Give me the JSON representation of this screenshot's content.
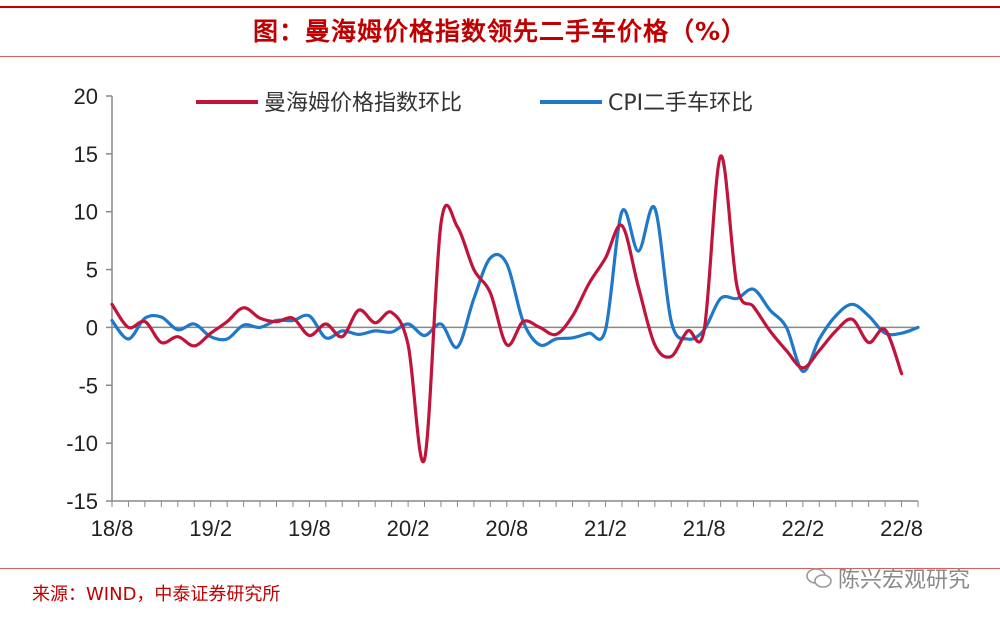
{
  "header": {
    "title": "图：曼海姆价格指数领先二手车价格（%）"
  },
  "footer": {
    "source": "来源：WIND，中泰证券研究所",
    "watermark": "陈兴宏观研究"
  },
  "colors": {
    "accent": "#c00000",
    "series_1": "#c0143c",
    "series_2": "#1f78c8",
    "axis": "#888888"
  },
  "chart_data": {
    "type": "line",
    "title": "图：曼海姆价格指数领先二手车价格（%）",
    "xlabel": "",
    "ylabel": "",
    "ylim": [
      -15,
      20
    ],
    "yticks": [
      20,
      15,
      10,
      5,
      0,
      -5,
      -10,
      -15
    ],
    "xlim": [
      "2018-08",
      "2022-09"
    ],
    "xticks": [
      "18/8",
      "19/2",
      "19/8",
      "20/2",
      "20/8",
      "21/2",
      "21/8",
      "22/2",
      "22/8"
    ],
    "legend": {
      "placement": "top-center"
    },
    "grid": false,
    "series": [
      {
        "name": "曼海姆价格指数环比",
        "x": [
          "2018-08",
          "2018-09",
          "2018-10",
          "2018-11",
          "2018-12",
          "2019-01",
          "2019-02",
          "2019-03",
          "2019-04",
          "2019-05",
          "2019-06",
          "2019-07",
          "2019-08",
          "2019-09",
          "2019-10",
          "2019-11",
          "2019-12",
          "2020-01",
          "2020-02",
          "2020-03",
          "2020-04",
          "2020-05",
          "2020-06",
          "2020-07",
          "2020-08",
          "2020-09",
          "2020-10",
          "2020-11",
          "2020-12",
          "2021-01",
          "2021-02",
          "2021-03",
          "2021-04",
          "2021-05",
          "2021-06",
          "2021-07",
          "2021-08",
          "2021-09",
          "2021-10",
          "2021-11",
          "2021-12",
          "2022-01",
          "2022-02",
          "2022-03",
          "2022-04",
          "2022-05",
          "2022-06",
          "2022-07",
          "2022-08",
          "2022-09"
        ],
        "values": [
          2.0,
          0.0,
          0.5,
          -1.3,
          -0.8,
          -1.6,
          -0.5,
          0.5,
          1.7,
          0.8,
          0.5,
          0.8,
          -0.7,
          0.3,
          -0.8,
          1.5,
          0.4,
          1.3,
          -1.5,
          -11.4,
          9.0,
          8.7,
          5.0,
          3.0,
          -1.5,
          0.5,
          0.0,
          -0.6,
          1.0,
          3.8,
          6.0,
          8.8,
          3.5,
          -1.5,
          -2.5,
          -0.3,
          -0.2,
          14.8,
          3.5,
          1.8,
          -0.3,
          -2.0,
          -3.5,
          -2.0,
          -0.3,
          0.7,
          -1.3,
          -0.2,
          -4.0,
          null
        ]
      },
      {
        "name": "CPI二手车环比",
        "x": [
          "2018-08",
          "2018-09",
          "2018-10",
          "2018-11",
          "2018-12",
          "2019-01",
          "2019-02",
          "2019-03",
          "2019-04",
          "2019-05",
          "2019-06",
          "2019-07",
          "2019-08",
          "2019-09",
          "2019-10",
          "2019-11",
          "2019-12",
          "2020-01",
          "2020-02",
          "2020-03",
          "2020-04",
          "2020-05",
          "2020-06",
          "2020-07",
          "2020-08",
          "2020-09",
          "2020-10",
          "2020-11",
          "2020-12",
          "2021-01",
          "2021-02",
          "2021-03",
          "2021-04",
          "2021-05",
          "2021-06",
          "2021-07",
          "2021-08",
          "2021-09",
          "2021-10",
          "2021-11",
          "2021-12",
          "2022-01",
          "2022-02",
          "2022-03",
          "2022-04",
          "2022-05",
          "2022-06",
          "2022-07",
          "2022-08",
          "2022-09"
        ],
        "values": [
          0.6,
          -1.0,
          0.8,
          0.9,
          -0.2,
          0.3,
          -0.8,
          -1.0,
          0.2,
          0.0,
          0.6,
          0.6,
          1.0,
          -0.9,
          -0.3,
          -0.6,
          -0.3,
          -0.4,
          0.3,
          -0.7,
          0.3,
          -1.7,
          2.5,
          6.0,
          5.5,
          0.5,
          -1.5,
          -1.0,
          -0.9,
          -0.5,
          -0.2,
          10.0,
          6.6,
          10.3,
          0.5,
          -1.0,
          -0.2,
          2.5,
          2.5,
          3.3,
          1.5,
          0.0,
          -3.8,
          -1.0,
          1.0,
          2.0,
          1.0,
          -0.5,
          -0.5,
          0.0
        ]
      }
    ]
  }
}
